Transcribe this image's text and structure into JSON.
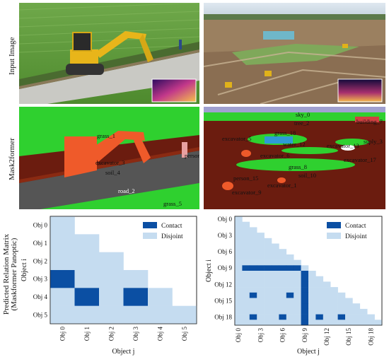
{
  "row_labels": {
    "input": "Input Image",
    "mask": "Mask2former",
    "matrix_line1": "Predicted Relation Matrix",
    "matrix_line2": "(Maskformer Panoptic)"
  },
  "scene1_labels": [
    "grass_1",
    "excavator_3",
    "soil_4",
    "person",
    "road_2",
    "grass_5"
  ],
  "scene2_labels": [
    "sky_0",
    "tree_2",
    "building_7",
    "excavator_5",
    "grass_18",
    "water_12",
    "excavator_13",
    "suply_3",
    "excavator_6",
    "excavator_17",
    "grass_8",
    "person_15",
    "soil_10",
    "excavator_1",
    "excavator_9"
  ],
  "legend": {
    "contact": "Contact",
    "disjoint": "Disjoint"
  },
  "colors": {
    "contact": "#0b4fa3",
    "disjoint": "#c5dcf0"
  },
  "chart_data": [
    {
      "type": "heatmap",
      "title": "",
      "xlabel": "Object j",
      "ylabel": "Object i",
      "x_ticks": [
        "Obj 0",
        "Obj 1",
        "Obj 2",
        "Obj 3",
        "Obj 4",
        "Obj 5"
      ],
      "y_ticks": [
        "Obj 0",
        "Obj 1",
        "Obj 2",
        "Obj 3",
        "Obj 4",
        "Obj 5"
      ],
      "n": 6,
      "contact": [
        [
          3,
          0
        ],
        [
          4,
          1
        ],
        [
          4,
          3
        ]
      ],
      "note_upper": "upper triangle excluding diagonal"
    },
    {
      "type": "heatmap",
      "title": "",
      "xlabel": "Object j",
      "ylabel": "Object i",
      "x_ticks": [
        "Obj 0",
        "Obj 3",
        "Obj 6",
        "Obj 9",
        "Obj 12",
        "Obj 15",
        "Obj 18"
      ],
      "y_ticks": [
        "Obj 0",
        "Obj 3",
        "Obj 6",
        "Obj 9",
        "Obj 12",
        "Obj 15",
        "Obj 18"
      ],
      "n": 20,
      "contact": [
        [
          9,
          1
        ],
        [
          9,
          2
        ],
        [
          9,
          3
        ],
        [
          9,
          4
        ],
        [
          9,
          5
        ],
        [
          9,
          6
        ],
        [
          9,
          7
        ],
        [
          9,
          8
        ],
        [
          10,
          9
        ],
        [
          11,
          9
        ],
        [
          12,
          9
        ],
        [
          13,
          9
        ],
        [
          14,
          9
        ],
        [
          15,
          9
        ],
        [
          16,
          9
        ],
        [
          17,
          9
        ],
        [
          18,
          9
        ],
        [
          19,
          9
        ],
        [
          14,
          2
        ],
        [
          14,
          7
        ],
        [
          18,
          2
        ],
        [
          18,
          6
        ],
        [
          18,
          11
        ],
        [
          18,
          14
        ]
      ]
    }
  ]
}
